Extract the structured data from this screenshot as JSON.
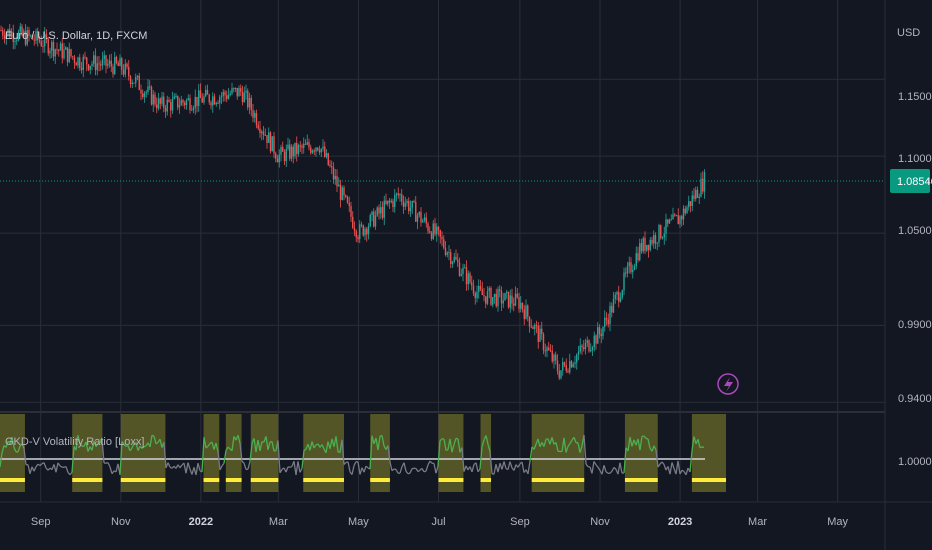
{
  "header": {
    "symbol_title": "Euro / U.S. Dollar, 1D, FXCM",
    "currency": "USD"
  },
  "price_scale": {
    "ticks": [
      "1.15000",
      "1.10000",
      "1.05000",
      "0.99000",
      "0.94000"
    ],
    "last_price": "1.08546",
    "last_price_color": "#089981"
  },
  "indicator": {
    "title": "GKD-V Volatility Ratio [Loxx]",
    "scale_ticks": [
      "1.00000"
    ],
    "line_color_high": "#4caf50",
    "line_color_low": "#787b86",
    "highlight_color": "#6b6b2a",
    "baseline_color": "#ffeb3b"
  },
  "time_axis": {
    "labels": [
      {
        "text": "Sep",
        "bold": false
      },
      {
        "text": "Nov",
        "bold": false
      },
      {
        "text": "2022",
        "bold": true
      },
      {
        "text": "Mar",
        "bold": false
      },
      {
        "text": "May",
        "bold": false
      },
      {
        "text": "Jul",
        "bold": false
      },
      {
        "text": "Sep",
        "bold": false
      },
      {
        "text": "Nov",
        "bold": false
      },
      {
        "text": "2023",
        "bold": true
      },
      {
        "text": "Mar",
        "bold": false
      },
      {
        "text": "May",
        "bold": false
      }
    ]
  },
  "colors": {
    "background": "#131722",
    "up": "#26a69a",
    "down": "#ef5350",
    "grid": "#2a2e39"
  },
  "chart_data": {
    "type": "candlestick",
    "title": "Euro / U.S. Dollar, 1D, FXCM",
    "ylim": [
      0.935,
      1.195
    ],
    "x": [
      "2021-08-01",
      "2021-09-01",
      "2021-10-01",
      "2021-11-01",
      "2021-12-01",
      "2022-01-01",
      "2022-02-01",
      "2022-03-01",
      "2022-04-01",
      "2022-05-01",
      "2022-06-01",
      "2022-07-01",
      "2022-08-01",
      "2022-09-01",
      "2022-10-01",
      "2022-11-01",
      "2022-12-01",
      "2023-01-01",
      "2023-01-20"
    ],
    "close": [
      1.182,
      1.175,
      1.162,
      1.158,
      1.133,
      1.137,
      1.142,
      1.1,
      1.108,
      1.05,
      1.075,
      1.047,
      1.01,
      1.005,
      0.96,
      0.985,
      1.04,
      1.06,
      1.085
    ],
    "indicator_series": {
      "name": "GKD-V Volatility Ratio [Loxx]",
      "baseline": 1.0,
      "highlight_ranges": [
        [
          "2021-08-01",
          "2021-08-20"
        ],
        [
          "2021-09-25",
          "2021-10-18"
        ],
        [
          "2021-11-01",
          "2021-12-05"
        ],
        [
          "2022-01-03",
          "2022-01-15"
        ],
        [
          "2022-01-20",
          "2022-02-01"
        ],
        [
          "2022-02-08",
          "2022-03-01"
        ],
        [
          "2022-03-20",
          "2022-04-20"
        ],
        [
          "2022-05-10",
          "2022-05-25"
        ],
        [
          "2022-07-01",
          "2022-07-20"
        ],
        [
          "2022-08-02",
          "2022-08-10"
        ],
        [
          "2022-09-10",
          "2022-10-20"
        ],
        [
          "2022-11-20",
          "2022-12-15"
        ],
        [
          "2023-01-10",
          "2023-02-05"
        ]
      ]
    }
  }
}
